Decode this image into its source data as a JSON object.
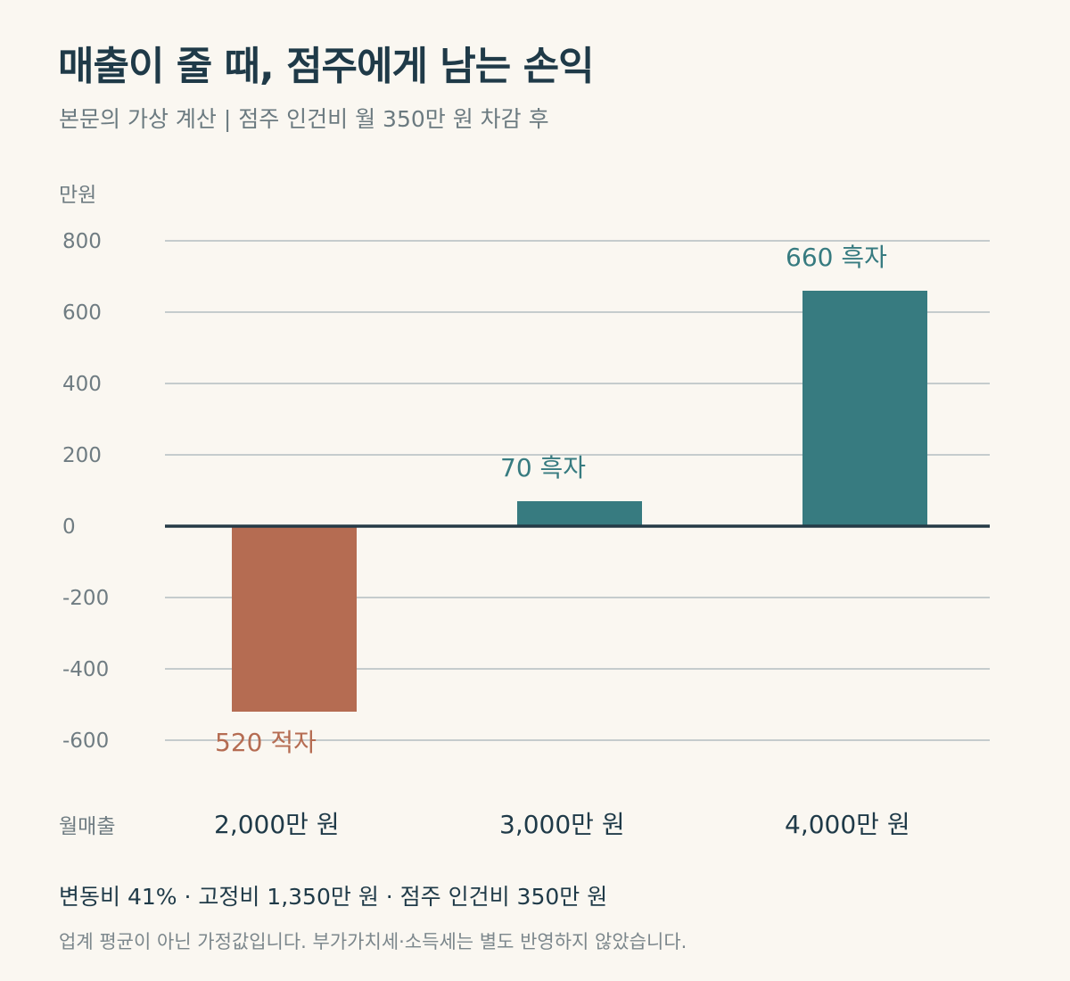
{
  "title": "매출이 줄 때, 점주에게 남는 손익",
  "subtitle": "본문의 가상 계산  |  점주 인건비 월 350만 원 차감 후",
  "colors": {
    "positive": "#377b80",
    "negative": "#b56c52",
    "grid": "#c5cccd",
    "zero_line": "#243a46",
    "background": "#faf7f1"
  },
  "chart_data": {
    "type": "bar",
    "ylabel": "만원",
    "xlabel": "월매출",
    "ylim": [
      -600,
      800
    ],
    "yticks": [
      800,
      600,
      400,
      200,
      0,
      -200,
      -400,
      -600
    ],
    "categories": [
      "2,000만 원",
      "3,000만 원",
      "4,000만 원"
    ],
    "values": [
      -520,
      70,
      660
    ],
    "data_labels": [
      "520 적자",
      "70 흑자",
      "660 흑자"
    ],
    "grid": true,
    "legend": "none"
  },
  "footnote": {
    "assumptions": "변동비 41% · 고정비 1,350만 원 · 점주 인건비 350만 원",
    "disclaimer": "업계 평균이 아닌 가정값입니다. 부가가치세·소득세는 별도 반영하지 않았습니다."
  }
}
